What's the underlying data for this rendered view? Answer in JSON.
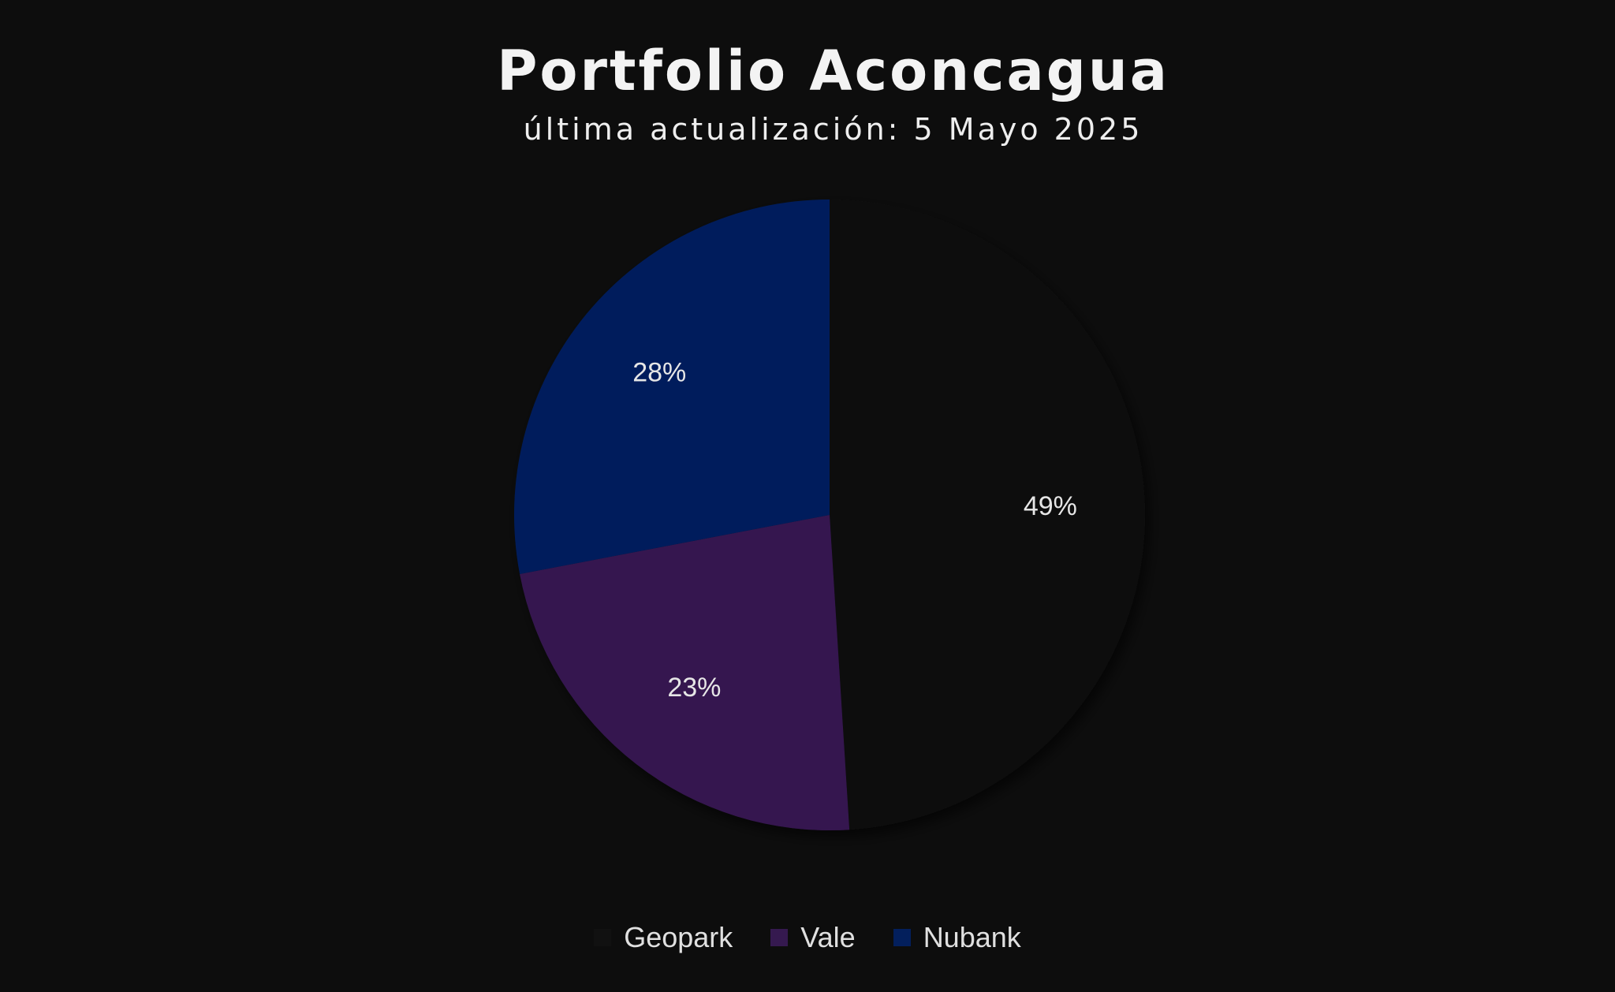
{
  "chart_data": {
    "type": "pie",
    "title": "Portfolio Aconcagua",
    "subtitle": "última actualización: 5 Mayo 2025",
    "categories": [
      "Geopark",
      "Vale",
      "Nubank"
    ],
    "values": [
      49,
      23,
      28
    ],
    "labels": [
      "49%",
      "23%",
      "28%"
    ],
    "colors": [
      "#111111",
      "#35194f",
      "#031f5c"
    ],
    "start_angle": "12 o'clock",
    "direction": "clockwise",
    "legend": {
      "position": "bottom"
    }
  }
}
